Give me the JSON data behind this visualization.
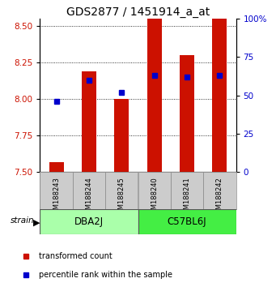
{
  "title": "GDS2877 / 1451914_a_at",
  "samples": [
    "GSM188243",
    "GSM188244",
    "GSM188245",
    "GSM188240",
    "GSM188241",
    "GSM188242"
  ],
  "red_values": [
    7.57,
    8.19,
    8.0,
    8.55,
    8.3,
    8.55
  ],
  "blue_percentiles": [
    46,
    60,
    52,
    63,
    62,
    63
  ],
  "groups": [
    {
      "label": "DBA2J",
      "indices": [
        0,
        1,
        2
      ],
      "color": "#aaffaa"
    },
    {
      "label": "C57BL6J",
      "indices": [
        3,
        4,
        5
      ],
      "color": "#44ee44"
    }
  ],
  "ymin": 7.5,
  "ymax": 8.55,
  "yticks_red": [
    7.5,
    7.75,
    8.0,
    8.25,
    8.5
  ],
  "yticks_blue_pct": [
    0,
    25,
    50,
    75,
    100
  ],
  "bar_color": "#cc1100",
  "dot_color": "#0000cc",
  "bar_width": 0.45,
  "background_color": "#ffffff",
  "plot_bg_color": "#ffffff",
  "title_fontsize": 10,
  "tick_fontsize": 7.5,
  "sample_fontsize": 6.0,
  "group_fontsize": 8.5,
  "legend_fontsize": 7.0
}
